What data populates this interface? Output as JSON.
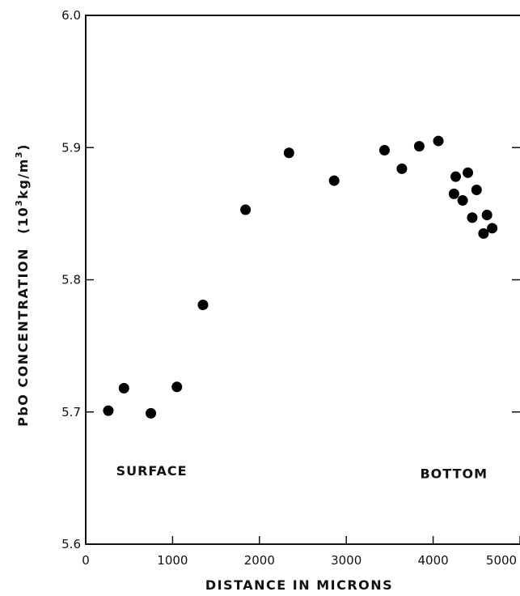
{
  "chart_data": {
    "type": "scatter",
    "xlabel": "DISTANCE IN MICRONS",
    "ylabel": "PbO CONCENTRATION",
    "ylabel_unit_base": "(10",
    "ylabel_unit_exp": "3",
    "ylabel_unit_mid": "kg/m",
    "ylabel_unit_exp2": "3",
    "ylabel_unit_end": ")",
    "xlim": [
      0,
      5000
    ],
    "ylim": [
      5.6,
      6.0
    ],
    "x_ticks": [
      0,
      1000,
      2000,
      3000,
      4000,
      5000
    ],
    "x_tick_labels": [
      "0",
      "1000",
      "2000",
      "3000",
      "4000",
      "5000"
    ],
    "y_ticks": [
      5.6,
      5.7,
      5.8,
      5.9,
      6.0
    ],
    "y_tick_labels": [
      "5.6",
      "5.7",
      "5.8",
      "5.9",
      "6.0"
    ],
    "grid": false,
    "annotations": [
      {
        "text": "SURFACE",
        "x": 350,
        "y": 5.652
      },
      {
        "text": "BOTTOM",
        "x": 3850,
        "y": 5.65
      }
    ],
    "series": [
      {
        "points": [
          {
            "x": 260,
            "y": 5.701
          },
          {
            "x": 440,
            "y": 5.718
          },
          {
            "x": 750,
            "y": 5.699
          },
          {
            "x": 1050,
            "y": 5.719
          },
          {
            "x": 1350,
            "y": 5.781
          },
          {
            "x": 1840,
            "y": 5.853
          },
          {
            "x": 2340,
            "y": 5.896
          },
          {
            "x": 2860,
            "y": 5.875
          },
          {
            "x": 3440,
            "y": 5.898
          },
          {
            "x": 3640,
            "y": 5.884
          },
          {
            "x": 3840,
            "y": 5.901
          },
          {
            "x": 4060,
            "y": 5.905
          },
          {
            "x": 4240,
            "y": 5.865
          },
          {
            "x": 4260,
            "y": 5.878
          },
          {
            "x": 4340,
            "y": 5.86
          },
          {
            "x": 4400,
            "y": 5.881
          },
          {
            "x": 4450,
            "y": 5.847
          },
          {
            "x": 4500,
            "y": 5.868
          },
          {
            "x": 4580,
            "y": 5.835
          },
          {
            "x": 4620,
            "y": 5.849
          },
          {
            "x": 4680,
            "y": 5.839
          }
        ]
      }
    ]
  }
}
